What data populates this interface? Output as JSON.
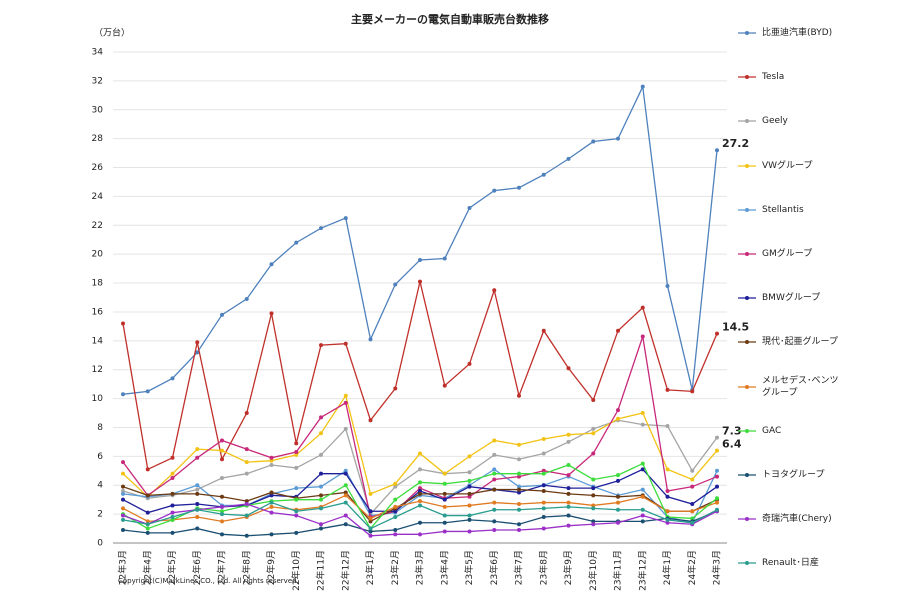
{
  "chart_data": {
    "type": "line",
    "title": "主要メーカーの電気自動車販売台数推移",
    "y_label": "（万台）",
    "copyright": "Copyright(C)MarkLines CO., Ltd. All rights reserved.",
    "categories": [
      "22年3月",
      "22年4月",
      "22年5月",
      "22年6月",
      "22年7月",
      "22年8月",
      "22年9月",
      "22年10月",
      "22年11月",
      "22年12月",
      "23年1月",
      "23年2月",
      "23年3月",
      "23年4月",
      "23年5月",
      "23年6月",
      "23年7月",
      "23年8月",
      "23年9月",
      "23年10月",
      "23年11月",
      "23年12月",
      "24年1月",
      "24年2月",
      "24年3月"
    ],
    "ylim": [
      0,
      34
    ],
    "yticks": [
      0,
      2,
      4,
      6,
      8,
      10,
      12,
      14,
      16,
      18,
      20,
      22,
      24,
      26,
      28,
      30,
      32,
      34
    ],
    "grid": true,
    "series": [
      {
        "name": "比亜迪汽車(BYD)",
        "color": "#4f81bd",
        "end_label": true,
        "values": [
          10.3,
          10.5,
          11.4,
          13.2,
          15.8,
          16.9,
          19.3,
          20.8,
          21.8,
          22.5,
          14.1,
          17.9,
          19.6,
          19.7,
          23.2,
          24.4,
          24.6,
          25.5,
          26.6,
          27.8,
          28.0,
          31.6,
          17.8,
          10.6,
          27.2
        ]
      },
      {
        "name": "Tesla",
        "color": "#c0302b",
        "end_label": true,
        "values": [
          15.2,
          5.1,
          5.9,
          13.9,
          5.8,
          9.0,
          15.9,
          6.9,
          13.7,
          13.8,
          8.5,
          10.7,
          18.1,
          10.9,
          12.4,
          17.5,
          10.2,
          14.7,
          12.1,
          9.9,
          14.7,
          16.3,
          10.6,
          10.5,
          14.5
        ]
      },
      {
        "name": "Geely",
        "color": "#a5a5a5",
        "end_label": true,
        "values": [
          3.6,
          3.1,
          3.3,
          3.7,
          4.5,
          4.8,
          5.4,
          5.2,
          6.1,
          7.9,
          2.0,
          3.9,
          5.1,
          4.8,
          4.9,
          6.1,
          5.8,
          6.2,
          7.0,
          7.9,
          8.5,
          8.2,
          8.1,
          5.0,
          7.3
        ]
      },
      {
        "name": "VWグループ",
        "color": "#f2c314",
        "end_label": true,
        "values": [
          4.8,
          3.2,
          4.8,
          6.5,
          6.4,
          5.6,
          5.7,
          6.1,
          7.6,
          10.2,
          3.4,
          4.1,
          6.2,
          4.8,
          6.0,
          7.1,
          6.8,
          7.2,
          7.5,
          7.6,
          8.6,
          9.0,
          5.1,
          4.4,
          6.4
        ]
      },
      {
        "name": "Stellantis",
        "color": "#5b9bd5",
        "end_label": false,
        "values": [
          3.4,
          3.2,
          3.4,
          4.0,
          2.6,
          2.6,
          3.4,
          3.8,
          3.9,
          5.0,
          1.9,
          2.1,
          3.3,
          3.1,
          4.0,
          5.1,
          3.9,
          4.0,
          4.6,
          3.9,
          3.3,
          3.7,
          1.8,
          1.4,
          5.0
        ]
      },
      {
        "name": "GMグループ",
        "color": "#c8287a",
        "end_label": false,
        "values": [
          5.6,
          3.3,
          4.5,
          5.9,
          7.1,
          6.5,
          5.9,
          6.3,
          8.7,
          9.7,
          1.8,
          2.2,
          3.8,
          3.1,
          3.2,
          4.4,
          4.6,
          5.0,
          4.7,
          6.2,
          9.2,
          14.3,
          3.6,
          3.9,
          4.6
        ]
      },
      {
        "name": "BMWグループ",
        "color": "#1f1f9a",
        "end_label": false,
        "values": [
          3.0,
          2.1,
          2.6,
          2.7,
          2.5,
          2.6,
          3.3,
          3.2,
          4.8,
          4.8,
          2.2,
          2.2,
          3.6,
          3.0,
          3.9,
          3.7,
          3.5,
          4.0,
          3.8,
          3.8,
          4.3,
          5.1,
          3.2,
          2.7,
          3.9
        ]
      },
      {
        "name": "現代･起亜グループ",
        "color": "#6b3a13",
        "end_label": false,
        "values": [
          3.9,
          3.3,
          3.4,
          3.4,
          3.2,
          2.9,
          3.5,
          3.1,
          3.3,
          3.5,
          1.5,
          2.4,
          3.4,
          3.4,
          3.4,
          3.7,
          3.7,
          3.6,
          3.4,
          3.3,
          3.2,
          3.3,
          2.2,
          2.2,
          3.0
        ]
      },
      {
        "name": "メルセデス･ベンツグループ",
        "color": "#e07b22",
        "end_label": false,
        "values": [
          2.4,
          1.5,
          1.6,
          1.8,
          1.5,
          1.8,
          2.5,
          2.3,
          2.5,
          3.3,
          1.7,
          2.5,
          2.9,
          2.5,
          2.6,
          2.8,
          2.7,
          2.8,
          2.8,
          2.6,
          2.8,
          3.2,
          2.2,
          2.2,
          2.8
        ]
      },
      {
        "name": "GAC",
        "color": "#3ddc3d",
        "end_label": false,
        "values": [
          2.0,
          1.0,
          1.6,
          2.4,
          2.2,
          2.6,
          2.9,
          3.0,
          3.0,
          4.0,
          1.0,
          3.0,
          4.2,
          4.1,
          4.3,
          4.8,
          4.8,
          4.8,
          5.4,
          4.4,
          4.7,
          5.5,
          1.8,
          1.7,
          3.1
        ]
      },
      {
        "name": "トヨタグループ",
        "color": "#1b4f72",
        "end_label": false,
        "values": [
          0.9,
          0.7,
          0.7,
          1.0,
          0.6,
          0.5,
          0.6,
          0.7,
          1.0,
          1.3,
          0.8,
          0.9,
          1.4,
          1.4,
          1.6,
          1.5,
          1.3,
          1.8,
          1.9,
          1.5,
          1.5,
          1.5,
          1.7,
          1.5,
          2.2
        ]
      },
      {
        "name": "奇瑞汽車(Chery)",
        "color": "#9b30c8",
        "end_label": false,
        "values": [
          1.9,
          1.3,
          2.1,
          2.3,
          2.5,
          2.7,
          2.1,
          1.9,
          1.3,
          1.9,
          0.5,
          0.6,
          0.6,
          0.8,
          0.8,
          0.9,
          0.9,
          1.0,
          1.2,
          1.3,
          1.4,
          1.9,
          1.4,
          1.3,
          2.2
        ]
      },
      {
        "name": "Renault･日産",
        "color": "#2a9d8f",
        "end_label": false,
        "values": [
          1.6,
          1.3,
          1.8,
          2.3,
          2.0,
          1.9,
          2.8,
          2.2,
          2.4,
          2.8,
          1.0,
          1.8,
          2.6,
          1.9,
          1.9,
          2.3,
          2.3,
          2.4,
          2.5,
          2.4,
          2.3,
          2.3,
          1.6,
          1.4,
          2.3
        ]
      }
    ]
  }
}
